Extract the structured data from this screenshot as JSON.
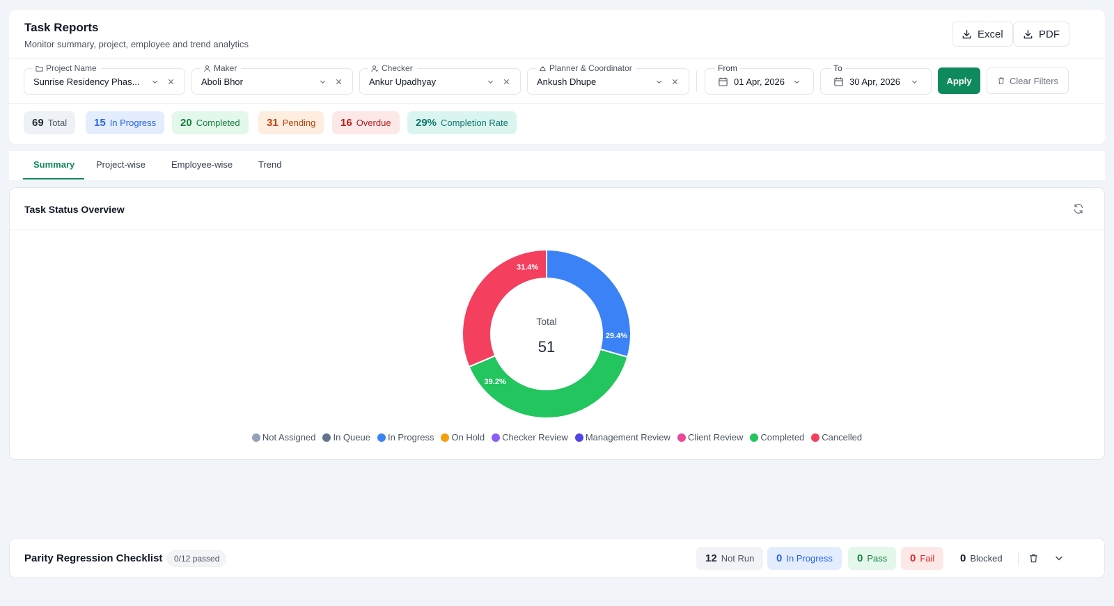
{
  "header": {
    "title": "Task Reports",
    "subtitle": "Monitor summary, project, employee and trend analytics",
    "excel_label": "Excel",
    "pdf_label": "PDF"
  },
  "filters": {
    "project": {
      "label": "Project Name",
      "value": "Sunrise Residency Phas..."
    },
    "maker": {
      "label": "Maker",
      "value": "Aboli Bhor"
    },
    "checker": {
      "label": "Checker",
      "value": "Ankur Upadhyay"
    },
    "planner": {
      "label": "Planner & Coordinator",
      "value": "Ankush Dhupe"
    },
    "from": {
      "label": "From",
      "value": "01 Apr, 2026"
    },
    "to": {
      "label": "To",
      "value": "30 Apr, 2026"
    },
    "apply_label": "Apply",
    "clear_label": "Clear Filters"
  },
  "stats": [
    {
      "num": "69",
      "label": "Total",
      "bg": "#eef1f5",
      "num_color": "#1f2937",
      "label_color": "#4b5563"
    },
    {
      "num": "15",
      "label": "In Progress",
      "bg": "#e3edfd",
      "num_color": "#2563eb",
      "label_color": "#2563eb"
    },
    {
      "num": "20",
      "label": "Completed",
      "bg": "#e3f7ea",
      "num_color": "#15803d",
      "label_color": "#15803d"
    },
    {
      "num": "31",
      "label": "Pending",
      "bg": "#fdeee0",
      "num_color": "#c2410c",
      "label_color": "#c2410c"
    },
    {
      "num": "16",
      "label": "Overdue",
      "bg": "#fde8e8",
      "num_color": "#b91c1c",
      "label_color": "#b91c1c"
    },
    {
      "num": "29%",
      "label": "Completion Rate",
      "bg": "#daf5ef",
      "num_color": "#0f766e",
      "label_color": "#0f766e"
    }
  ],
  "tabs": [
    "Summary",
    "Project-wise",
    "Employee-wise",
    "Trend"
  ],
  "overview": {
    "title": "Task Status Overview",
    "center_label": "Total",
    "center_value": "51"
  },
  "chart_data": {
    "type": "pie",
    "title": "Task Status Overview",
    "total": 51,
    "categories": [
      "Not Assigned",
      "In Queue",
      "In Progress",
      "On Hold",
      "Checker Review",
      "Management Review",
      "Client Review",
      "Completed",
      "Cancelled"
    ],
    "values": [
      0,
      0,
      15,
      0,
      0,
      0,
      0,
      20,
      16
    ],
    "percent_labels": [
      "",
      "",
      "29.4%",
      "",
      "",
      "",
      "",
      "39.2%",
      "31.4%"
    ],
    "colors": [
      "#94a3b8",
      "#64748b",
      "#3b82f6",
      "#f59e0b",
      "#8b5cf6",
      "#4f46e5",
      "#ec4899",
      "#22c55e",
      "#f43f5e"
    ],
    "legend": "bottom"
  },
  "checklist": {
    "title": "Parity Regression Checklist",
    "badge": "0/12 passed",
    "stats": [
      {
        "num": "12",
        "label": "Not Run",
        "bg": "#f1f3f6",
        "num_color": "#1f2937",
        "label_color": "#4b5563"
      },
      {
        "num": "0",
        "label": "In Progress",
        "bg": "#e3edfd",
        "num_color": "#2563eb",
        "label_color": "#2563eb"
      },
      {
        "num": "0",
        "label": "Pass",
        "bg": "#e3f7ea",
        "num_color": "#15803d",
        "label_color": "#15803d"
      },
      {
        "num": "0",
        "label": "Fail",
        "bg": "#fde8e8",
        "num_color": "#dc2626",
        "label_color": "#dc2626"
      },
      {
        "num": "0",
        "label": "Blocked",
        "bg": "#ffffff",
        "num_color": "#111827",
        "label_color": "#374151"
      }
    ]
  }
}
